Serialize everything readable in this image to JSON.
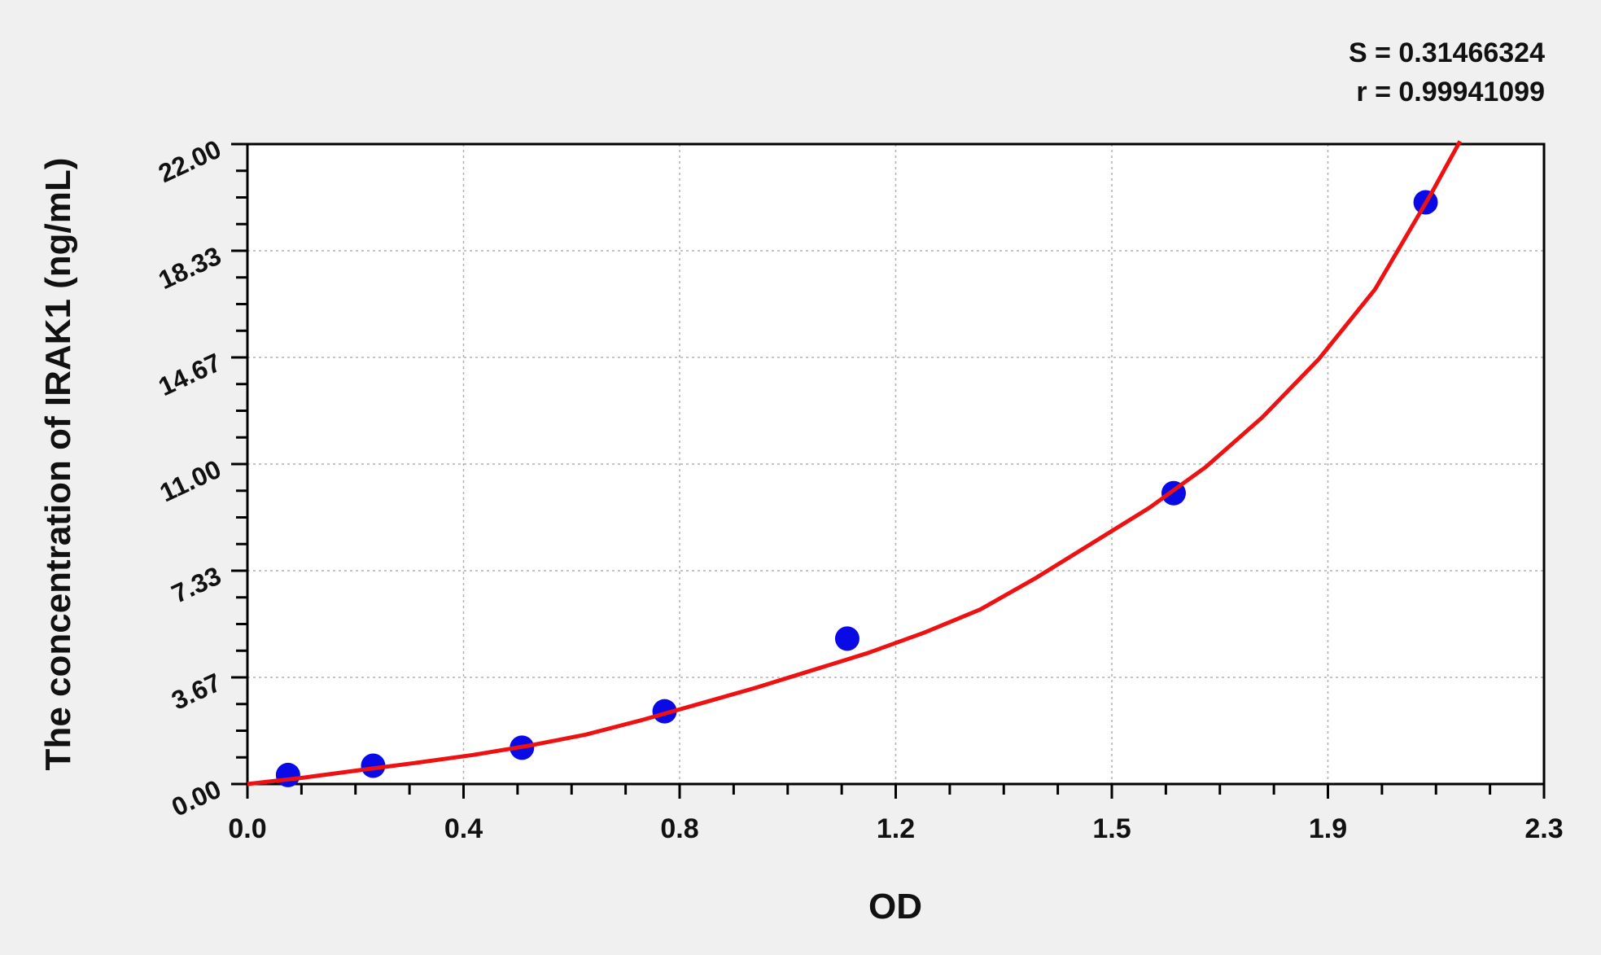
{
  "chart_data": {
    "type": "scatter",
    "title": "",
    "xlabel": "OD",
    "ylabel": "The concentration of IRAK1 (ng/mL)",
    "xlim": [
      0,
      2.3
    ],
    "ylim": [
      0,
      22
    ],
    "x_ticks": [
      "0.0",
      "0.4",
      "0.8",
      "1.2",
      "1.5",
      "1.9",
      "2.3"
    ],
    "y_ticks": [
      "0.00",
      "3.67",
      "7.33",
      "11.00",
      "14.67",
      "18.33",
      "22.00"
    ],
    "grid": true,
    "annotations": [
      "S = 0.31466324",
      "r = 0.99941099"
    ],
    "points": [
      {
        "x": 0.072,
        "y": 0.31
      },
      {
        "x": 0.223,
        "y": 0.63
      },
      {
        "x": 0.487,
        "y": 1.25
      },
      {
        "x": 0.74,
        "y": 2.5
      },
      {
        "x": 1.064,
        "y": 5
      },
      {
        "x": 1.643,
        "y": 10
      },
      {
        "x": 2.09,
        "y": 20
      }
    ],
    "fit_curve": [
      [
        0,
        0
      ],
      [
        0.1,
        0.22
      ],
      [
        0.2,
        0.48
      ],
      [
        0.3,
        0.73
      ],
      [
        0.4,
        1.0
      ],
      [
        0.5,
        1.32
      ],
      [
        0.6,
        1.7
      ],
      [
        0.7,
        2.2
      ],
      [
        0.8,
        2.75
      ],
      [
        0.9,
        3.3
      ],
      [
        1.0,
        3.9
      ],
      [
        1.1,
        4.5
      ],
      [
        1.2,
        5.2
      ],
      [
        1.3,
        6.0
      ],
      [
        1.4,
        7.1
      ],
      [
        1.5,
        8.3
      ],
      [
        1.6,
        9.5
      ],
      [
        1.7,
        10.9
      ],
      [
        1.8,
        12.6
      ],
      [
        1.9,
        14.6
      ],
      [
        2.0,
        17.0
      ],
      [
        2.1,
        20.3
      ],
      [
        2.151,
        22.1
      ]
    ],
    "colors": {
      "points": "#0a0ae6",
      "curve": "#ee1111",
      "grid": "#b0b0b0"
    }
  }
}
